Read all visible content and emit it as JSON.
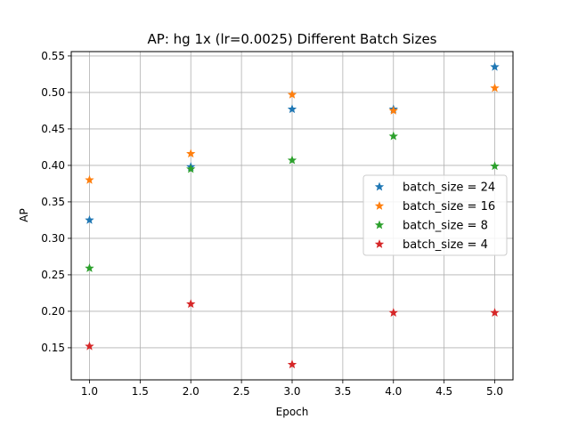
{
  "chart_data": {
    "type": "scatter",
    "title": "AP: hg 1x (lr=0.0025) Different Batch Sizes",
    "xlabel": "Epoch",
    "ylabel": "AP",
    "xlim": [
      0.82,
      5.18
    ],
    "ylim": [
      0.106,
      0.556
    ],
    "grid": true,
    "legend_position": "center-right",
    "marker": "star",
    "x_ticks": [
      "1.0",
      "1.5",
      "2.0",
      "2.5",
      "3.0",
      "3.5",
      "4.0",
      "4.5",
      "5.0"
    ],
    "y_ticks": [
      "0.15",
      "0.20",
      "0.25",
      "0.30",
      "0.35",
      "0.40",
      "0.45",
      "0.50",
      "0.55"
    ],
    "x": [
      1,
      2,
      3,
      4,
      5
    ],
    "series": [
      {
        "name": "batch_size = 24",
        "color": "#1f77b4",
        "values": [
          0.325,
          0.398,
          0.477,
          0.477,
          0.535
        ]
      },
      {
        "name": "batch_size = 16",
        "color": "#ff7f0e",
        "values": [
          0.38,
          0.416,
          0.497,
          0.475,
          0.506
        ]
      },
      {
        "name": "batch_size = 8",
        "color": "#2ca02c",
        "values": [
          0.259,
          0.395,
          0.407,
          0.44,
          0.399
        ]
      },
      {
        "name": "batch_size = 4",
        "color": "#d62728",
        "values": [
          0.152,
          0.21,
          0.127,
          0.198,
          0.198
        ]
      }
    ]
  }
}
